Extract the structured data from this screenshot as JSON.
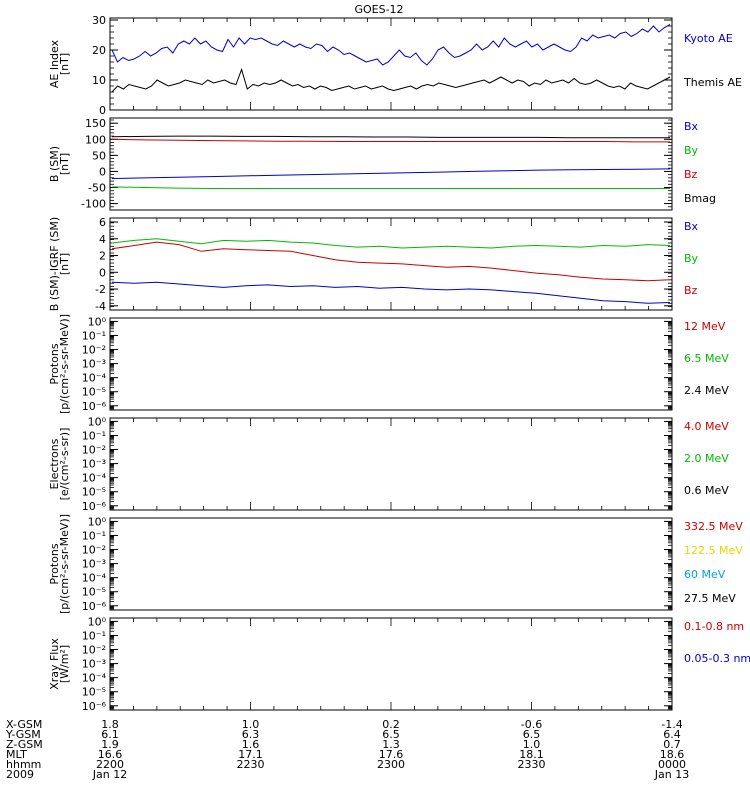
{
  "title": "GOES-12",
  "chart_data": [
    {
      "type": "line",
      "ylabel": [
        "AE Index",
        "[nT]"
      ],
      "ylim": [
        0,
        30
      ],
      "yticks": [
        {
          "v": 0,
          "t": "0"
        },
        {
          "v": 10,
          "t": "10"
        },
        {
          "v": 20,
          "t": "20"
        },
        {
          "v": 30,
          "t": "30"
        }
      ],
      "log": false,
      "series": [
        {
          "name": "Kyoto AE",
          "color": "#0000cc",
          "values": [
            20,
            16,
            17.5,
            16.5,
            17,
            18,
            19.5,
            18,
            19,
            20.5,
            21,
            19,
            22,
            23,
            22,
            24,
            22,
            23,
            21,
            20,
            19.5,
            23.5,
            21,
            24,
            22,
            24,
            23.5,
            24,
            23,
            22,
            21.5,
            23,
            22,
            21,
            22,
            21,
            20.5,
            22,
            21.5,
            19.5,
            21,
            20,
            18.5,
            19,
            18,
            17,
            16,
            16.5,
            17,
            15,
            16,
            18,
            20,
            18,
            17.5,
            19,
            16.5,
            15,
            17,
            20,
            21,
            19,
            17.5,
            18,
            19,
            20,
            22,
            20,
            21,
            23,
            21,
            24,
            22,
            21,
            22,
            23,
            21,
            22,
            20,
            21,
            22,
            21,
            20,
            19.5,
            21,
            24,
            23,
            25,
            24,
            24.5,
            25,
            24,
            25.5,
            26,
            24.5,
            25.5,
            27,
            26,
            28,
            26,
            27.5,
            28.5
          ]
        },
        {
          "name": "Themis AE",
          "color": "#000000",
          "values": [
            6,
            8,
            7,
            8.5,
            8,
            7.5,
            7,
            8,
            10,
            9,
            8,
            8.5,
            9,
            10,
            9.5,
            9,
            8.5,
            10,
            9,
            9.5,
            10,
            9,
            8.5,
            13.5,
            7,
            8.5,
            8,
            9,
            8.5,
            9,
            10,
            9,
            8,
            8.5,
            7.5,
            8,
            7,
            8,
            7.5,
            6.5,
            7,
            7.5,
            8,
            7,
            7.5,
            8,
            7,
            7.5,
            8,
            7,
            6.5,
            7,
            7.5,
            8,
            7,
            8,
            8.5,
            8,
            9,
            8.5,
            8,
            7.5,
            8,
            8.5,
            9,
            9.5,
            10,
            9,
            10,
            11,
            10,
            9,
            10,
            9.5,
            8,
            9,
            8.5,
            10,
            9,
            9.5,
            10,
            9,
            10.5,
            9,
            8.5,
            9,
            10,
            9,
            8,
            7.5,
            8,
            7,
            9,
            8,
            7.5,
            7,
            8,
            9,
            10,
            11
          ]
        }
      ],
      "legend": [
        {
          "label": "Kyoto AE",
          "color": "#0000cc"
        },
        {
          "label": "Themis AE",
          "color": "#000000"
        }
      ]
    },
    {
      "type": "line",
      "ylabel": [
        "B (SM)",
        "[nT]"
      ],
      "ylim": [
        -120,
        160
      ],
      "yticks": [
        {
          "v": -100,
          "t": "-100"
        },
        {
          "v": -50,
          "t": "-50"
        },
        {
          "v": 0,
          "t": "0"
        },
        {
          "v": 50,
          "t": "50"
        },
        {
          "v": 100,
          "t": "100"
        },
        {
          "v": 150,
          "t": "150"
        }
      ],
      "log": false,
      "series": [
        {
          "name": "Bx",
          "color": "#0000cc",
          "values": [
            -22,
            -20,
            -18,
            -16,
            -14,
            -12,
            -10,
            -8,
            -6,
            -4,
            -2,
            0,
            2,
            4,
            5,
            6,
            7,
            8
          ]
        },
        {
          "name": "By",
          "color": "#00bb00",
          "values": [
            -48,
            -50,
            -52,
            -53,
            -53,
            -53,
            -53,
            -53,
            -53,
            -53,
            -53,
            -53,
            -53,
            -53,
            -53,
            -53,
            -53,
            -53
          ]
        },
        {
          "name": "Bz",
          "color": "#cc0000",
          "values": [
            100,
            98,
            97,
            96,
            95,
            94,
            94,
            93,
            93,
            93,
            93,
            93,
            93,
            93,
            93,
            93,
            92,
            92
          ]
        },
        {
          "name": "Bmag",
          "color": "#000000",
          "values": [
            108,
            109,
            110,
            110,
            109,
            109,
            108,
            108,
            107,
            107,
            106,
            106,
            106,
            106,
            105,
            105,
            105,
            105
          ]
        }
      ],
      "legend": [
        {
          "label": "Bx",
          "color": "#0000cc"
        },
        {
          "label": "By",
          "color": "#00bb00"
        },
        {
          "label": "Bz",
          "color": "#cc0000"
        },
        {
          "label": "Bmag",
          "color": "#000000"
        }
      ]
    },
    {
      "type": "line",
      "ylabel": [
        "B (SM)-IGRF (SM)",
        "[nT]"
      ],
      "ylim": [
        -4.5,
        6
      ],
      "yticks": [
        {
          "v": -4,
          "t": "-4"
        },
        {
          "v": -2,
          "t": "-2"
        },
        {
          "v": 0,
          "t": "0"
        },
        {
          "v": 2,
          "t": "2"
        },
        {
          "v": 4,
          "t": "4"
        },
        {
          "v": 6,
          "t": "6"
        }
      ],
      "log": false,
      "series": [
        {
          "name": "Bx",
          "color": "#0000cc",
          "values": [
            -1.2,
            -1.3,
            -1.2,
            -1.4,
            -1.6,
            -1.8,
            -1.6,
            -1.5,
            -1.7,
            -1.6,
            -1.8,
            -1.7,
            -1.9,
            -1.8,
            -2.0,
            -2.1,
            -2.0,
            -2.1,
            -2.3,
            -2.5,
            -2.8,
            -3.1,
            -3.4,
            -3.5,
            -3.7,
            -3.6
          ]
        },
        {
          "name": "By",
          "color": "#00bb00",
          "values": [
            3.5,
            3.8,
            4.0,
            3.7,
            3.4,
            3.8,
            3.7,
            3.8,
            3.6,
            3.5,
            3.2,
            3.0,
            3.1,
            2.9,
            3.0,
            3.1,
            3.0,
            2.9,
            3.1,
            3.2,
            3.1,
            3.0,
            3.2,
            3.1,
            3.3,
            3.2
          ]
        },
        {
          "name": "Bz",
          "color": "#cc0000",
          "values": [
            2.8,
            3.2,
            3.6,
            3.3,
            2.5,
            2.8,
            2.7,
            2.6,
            2.5,
            2.0,
            1.5,
            1.2,
            1.1,
            1.0,
            0.8,
            0.6,
            0.7,
            0.5,
            0.2,
            -0.1,
            -0.3,
            -0.6,
            -0.8,
            -0.9,
            -1.0,
            -0.9
          ]
        }
      ],
      "legend": [
        {
          "label": "Bx",
          "color": "#0000cc"
        },
        {
          "label": "By",
          "color": "#00bb00"
        },
        {
          "label": "Bz",
          "color": "#cc0000"
        }
      ]
    },
    {
      "type": "line",
      "ylabel": [
        "Protons",
        "[p/(cm²-s-sr-MeV)]"
      ],
      "log": true,
      "yticks": [
        {
          "v": -6,
          "t": "10⁻⁶"
        },
        {
          "v": -5,
          "t": "10⁻⁵"
        },
        {
          "v": -4,
          "t": "10⁻⁴"
        },
        {
          "v": -3,
          "t": "10⁻³"
        },
        {
          "v": -2,
          "t": "10⁻²"
        },
        {
          "v": -1,
          "t": "10⁻¹"
        },
        {
          "v": 0,
          "t": "10⁰"
        }
      ],
      "series": [],
      "legend": [
        {
          "label": "12 MeV",
          "color": "#cc0000"
        },
        {
          "label": "6.5 MeV",
          "color": "#00bb00"
        },
        {
          "label": "2.4 MeV",
          "color": "#000000"
        }
      ]
    },
    {
      "type": "line",
      "ylabel": [
        "Electrons",
        "[e/(cm²-s-sr)]"
      ],
      "log": true,
      "yticks": [
        {
          "v": -6,
          "t": "10⁻⁶"
        },
        {
          "v": -5,
          "t": "10⁻⁵"
        },
        {
          "v": -4,
          "t": "10⁻⁴"
        },
        {
          "v": -3,
          "t": "10⁻³"
        },
        {
          "v": -2,
          "t": "10⁻²"
        },
        {
          "v": -1,
          "t": "10⁻¹"
        },
        {
          "v": 0,
          "t": "10⁰"
        }
      ],
      "series": [],
      "legend": [
        {
          "label": "4.0 MeV",
          "color": "#cc0000"
        },
        {
          "label": "2.0 MeV",
          "color": "#00bb00"
        },
        {
          "label": "0.6 MeV",
          "color": "#000000"
        }
      ]
    },
    {
      "type": "line",
      "ylabel": [
        "Protons",
        "[p/(cm²-s-sr-MeV)]"
      ],
      "log": true,
      "yticks": [
        {
          "v": -6,
          "t": "10⁻⁶"
        },
        {
          "v": -5,
          "t": "10⁻⁵"
        },
        {
          "v": -4,
          "t": "10⁻⁴"
        },
        {
          "v": -3,
          "t": "10⁻³"
        },
        {
          "v": -2,
          "t": "10⁻²"
        },
        {
          "v": -1,
          "t": "10⁻¹"
        },
        {
          "v": 0,
          "t": "10⁰"
        }
      ],
      "series": [],
      "legend": [
        {
          "label": "332.5 MeV",
          "color": "#cc0000"
        },
        {
          "label": "122.5 MeV",
          "color": "#e6d600"
        },
        {
          "label": "60 MeV",
          "color": "#00a0e0"
        },
        {
          "label": "27.5 MeV",
          "color": "#000000"
        }
      ]
    },
    {
      "type": "line",
      "ylabel": [
        "Xray Flux",
        "[W/m²]"
      ],
      "log": true,
      "yticks": [
        {
          "v": -6,
          "t": "10⁻⁶"
        },
        {
          "v": -5,
          "t": "10⁻⁵"
        },
        {
          "v": -4,
          "t": "10⁻⁴"
        },
        {
          "v": -3,
          "t": "10⁻³"
        },
        {
          "v": -2,
          "t": "10⁻²"
        },
        {
          "v": -1,
          "t": "10⁻¹"
        },
        {
          "v": 0,
          "t": "10⁰"
        }
      ],
      "series": [],
      "legend": [
        {
          "label": "0.1-0.8 nm",
          "color": "#cc0000"
        },
        {
          "label": "0.05-0.3 nm",
          "color": "#0000cc"
        }
      ]
    }
  ],
  "xaxis": {
    "row_labels": [
      "X-GSM",
      "Y-GSM",
      "Z-GSM",
      "MLT",
      "hhmm",
      "2009"
    ],
    "columns": [
      [
        "1.8",
        "6.1",
        "1.9",
        "16.6",
        "2200",
        "Jan 12"
      ],
      [
        "1.0",
        "6.3",
        "1.6",
        "17.1",
        "2230",
        ""
      ],
      [
        "0.2",
        "6.5",
        "1.3",
        "17.6",
        "2300",
        ""
      ],
      [
        "-0.6",
        "6.5",
        "1.0",
        "18.1",
        "2330",
        ""
      ],
      [
        "-1.4",
        "6.4",
        "0.7",
        "18.6",
        "0000",
        "Jan 13"
      ]
    ]
  }
}
